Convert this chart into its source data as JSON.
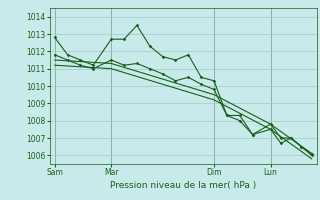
{
  "title": "",
  "xlabel": "Pression niveau de la mer( hPa )",
  "ylim": [
    1005.5,
    1014.5
  ],
  "yticks": [
    1006,
    1007,
    1008,
    1009,
    1010,
    1011,
    1012,
    1013,
    1014
  ],
  "bg_color": "#c8eaea",
  "grid_color": "#a0c8c8",
  "line_color": "#1a5e1a",
  "day_labels": [
    "Sam",
    "Mar",
    "Dim",
    "Lun"
  ],
  "day_positions": [
    0.0,
    0.22,
    0.62,
    0.84
  ],
  "xlim": [
    -0.02,
    1.02
  ],
  "lines": [
    {
      "x": [
        0.0,
        0.05,
        0.1,
        0.15,
        0.22,
        0.27,
        0.32,
        0.37,
        0.42,
        0.47,
        0.52,
        0.57,
        0.62,
        0.67,
        0.72,
        0.77,
        0.84,
        0.88,
        0.92,
        0.96,
        1.0
      ],
      "y": [
        1012.8,
        1011.8,
        1011.5,
        1011.2,
        1012.7,
        1012.7,
        1013.5,
        1012.3,
        1011.7,
        1011.5,
        1011.8,
        1010.5,
        1010.3,
        1008.3,
        1008.3,
        1007.2,
        1007.8,
        1007.0,
        1007.0,
        1006.5,
        1006.1
      ]
    },
    {
      "x": [
        0.0,
        0.05,
        0.1,
        0.15,
        0.22,
        0.27,
        0.32,
        0.37,
        0.42,
        0.47,
        0.52,
        0.57,
        0.62,
        0.67,
        0.72,
        0.77,
        0.84,
        0.88,
        0.92,
        0.96,
        1.0
      ],
      "y": [
        1011.8,
        1011.5,
        1011.2,
        1011.0,
        1011.5,
        1011.2,
        1011.3,
        1011.0,
        1010.7,
        1010.3,
        1010.5,
        1010.1,
        1009.8,
        1008.3,
        1008.0,
        1007.2,
        1007.5,
        1006.7,
        1007.0,
        1006.5,
        1006.0
      ]
    },
    {
      "x": [
        0.0,
        0.22,
        0.62,
        0.84,
        1.0
      ],
      "y": [
        1011.5,
        1011.3,
        1009.5,
        1007.8,
        1006.1
      ]
    },
    {
      "x": [
        0.0,
        0.22,
        0.62,
        0.84,
        1.0
      ],
      "y": [
        1011.2,
        1011.0,
        1009.2,
        1007.5,
        1005.8
      ]
    }
  ]
}
